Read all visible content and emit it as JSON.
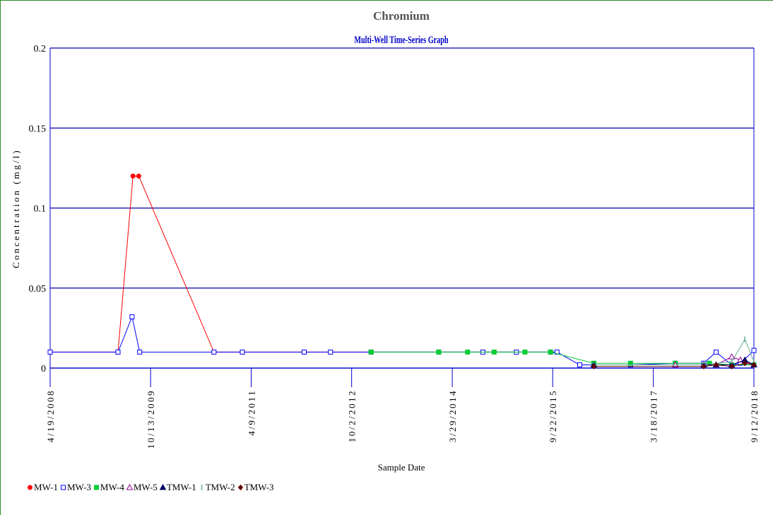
{
  "chart_data": {
    "type": "line",
    "title": "Chromium",
    "subtitle": "Multi-Well Time-Series Graph",
    "xlabel": "Sample Date",
    "ylabel": "Concentration (mg/l)",
    "xlim": [
      "2008-04-19",
      "2018-09-12"
    ],
    "ylim": [
      0,
      0.2
    ],
    "yticks": [
      "0",
      "0.05",
      "0.1",
      "0.15",
      "0.2"
    ],
    "xticks": [
      {
        "label": "4/19/2008",
        "date": "2008-04-19"
      },
      {
        "label": "10/13/2009",
        "date": "2009-10-13"
      },
      {
        "label": "4/9/2011",
        "date": "2011-04-09"
      },
      {
        "label": "10/2/2012",
        "date": "2012-10-02"
      },
      {
        "label": "3/29/2014",
        "date": "2014-03-29"
      },
      {
        "label": "9/22/2015",
        "date": "2015-09-22"
      },
      {
        "label": "3/18/2017",
        "date": "2017-03-18"
      },
      {
        "label": "9/12/2018",
        "date": "2018-09-12"
      }
    ],
    "grid": "horizontal",
    "legend_position": "bottom",
    "series": [
      {
        "name": "MW-1",
        "color": "#ff0000",
        "marker": "circle",
        "points": [
          [
            "2008-04-19",
            0.01
          ],
          [
            "2009-04-20",
            0.01
          ],
          [
            "2009-07-10",
            0.12
          ],
          [
            "2009-08-10",
            0.12
          ],
          [
            "2010-09-20",
            0.01
          ],
          [
            "2011-02-20",
            0.01
          ],
          [
            "2012-01-20",
            0.01
          ],
          [
            "2012-06-10",
            0.01
          ],
          [
            "2013-01-15",
            0.01
          ],
          [
            "2015-10-15",
            0.01
          ]
        ]
      },
      {
        "name": "MW-3",
        "color": "#0000ff",
        "marker": "square",
        "points": [
          [
            "2008-04-19",
            0.01
          ],
          [
            "2009-04-20",
            0.01
          ],
          [
            "2009-07-05",
            0.032
          ],
          [
            "2009-08-15",
            0.01
          ],
          [
            "2010-09-20",
            0.01
          ],
          [
            "2011-02-20",
            0.01
          ],
          [
            "2012-01-20",
            0.01
          ],
          [
            "2012-06-10",
            0.01
          ],
          [
            "2013-01-15",
            0.01
          ],
          [
            "2014-01-15",
            0.01
          ],
          [
            "2014-09-10",
            0.01
          ],
          [
            "2015-03-10",
            0.01
          ],
          [
            "2015-09-10",
            0.01
          ],
          [
            "2015-10-15",
            0.01
          ],
          [
            "2016-02-15",
            0.002
          ],
          [
            "2016-05-01",
            0.002
          ],
          [
            "2016-11-15",
            0.002
          ],
          [
            "2017-07-15",
            0.003
          ],
          [
            "2017-12-15",
            0.003
          ],
          [
            "2018-02-20",
            0.01
          ],
          [
            "2018-05-15",
            0.002
          ],
          [
            "2018-07-01",
            0.003
          ],
          [
            "2018-09-12",
            0.011
          ]
        ]
      },
      {
        "name": "MW-4",
        "color": "#00cc33",
        "marker": "square-filled",
        "points": [
          [
            "2013-01-15",
            0.01
          ],
          [
            "2014-01-15",
            0.01
          ],
          [
            "2014-06-20",
            0.01
          ],
          [
            "2014-11-10",
            0.01
          ],
          [
            "2015-04-25",
            0.01
          ],
          [
            "2015-09-10",
            0.01
          ],
          [
            "2016-05-01",
            0.003
          ],
          [
            "2016-11-15",
            0.003
          ],
          [
            "2017-07-15",
            0.003
          ],
          [
            "2018-01-15",
            0.003
          ],
          [
            "2018-05-15",
            0.002
          ],
          [
            "2018-09-12",
            0.002
          ]
        ]
      },
      {
        "name": "MW-5",
        "color": "#990099",
        "marker": "triangle",
        "points": [
          [
            "2016-05-01",
            0.002
          ],
          [
            "2017-07-15",
            0.002
          ],
          [
            "2017-12-15",
            0.002
          ],
          [
            "2018-02-20",
            0.002
          ],
          [
            "2018-05-15",
            0.007
          ],
          [
            "2018-07-01",
            0.005
          ],
          [
            "2018-09-12",
            0.002
          ]
        ]
      },
      {
        "name": "TMW-1",
        "color": "#000066",
        "marker": "triangle-filled",
        "points": [
          [
            "2016-05-01",
            0.002
          ],
          [
            "2017-12-15",
            0.002
          ],
          [
            "2018-02-20",
            0.002
          ],
          [
            "2018-05-15",
            0.002
          ],
          [
            "2018-07-25",
            0.005
          ],
          [
            "2018-09-12",
            0.002
          ]
        ]
      },
      {
        "name": "TMW-2",
        "color": "#66aa99",
        "marker": "tick",
        "points": [
          [
            "2016-05-01",
            0.002
          ],
          [
            "2017-12-15",
            0.002
          ],
          [
            "2018-05-15",
            0.004
          ],
          [
            "2018-07-25",
            0.018
          ],
          [
            "2018-09-12",
            0.004
          ]
        ]
      },
      {
        "name": "TMW-3",
        "color": "#660000",
        "marker": "diamond",
        "points": [
          [
            "2016-05-01",
            0.001
          ],
          [
            "2017-12-15",
            0.001
          ],
          [
            "2018-02-20",
            0.002
          ],
          [
            "2018-05-15",
            0.001
          ],
          [
            "2018-07-25",
            0.003
          ],
          [
            "2018-09-12",
            0.002
          ]
        ]
      }
    ]
  }
}
